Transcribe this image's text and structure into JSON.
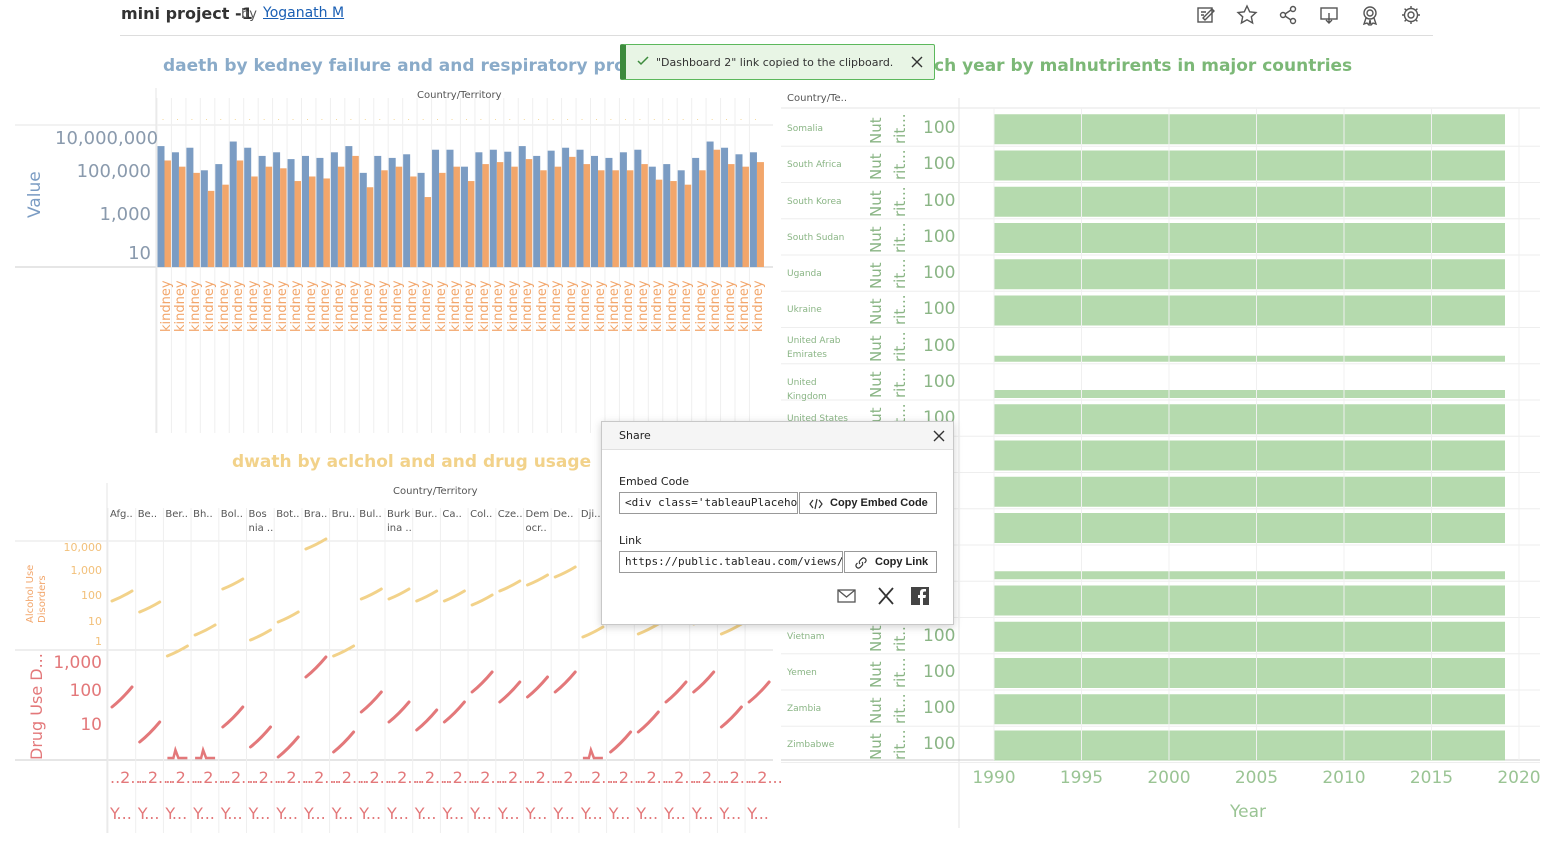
{
  "header": {
    "title": "mini project -1",
    "by": "by",
    "author": "Yoganath M",
    "tools": [
      "edit-icon",
      "star-icon",
      "share-icon",
      "download-icon",
      "metrics-icon",
      "settings-icon"
    ]
  },
  "toast": {
    "message": "\"Dashboard 2\" link copied to the clipboard."
  },
  "share": {
    "title": "Share",
    "embed_label": "Embed Code",
    "embed_value": "<div class='tableauPlaceholder",
    "embed_button": "Copy Embed Code",
    "link_label": "Link",
    "link_value": "https://public.tableau.com/views/minip",
    "link_button": "Copy Link"
  },
  "colors": {
    "blue": "#7b9cc3",
    "orange": "#f2a66b",
    "yellow": "#f2d28a",
    "red": "#e3787a",
    "green": "#a8d4a0",
    "green_text": "#7cb877",
    "blue_text": "#8aabc9"
  },
  "kidney": {
    "title": "daeth by kedney failure and and respiratory problem",
    "column_header": "Country/Territory",
    "ylabel": "Value",
    "yticks": [
      "10,000,000",
      "100,000",
      "1,000",
      "10"
    ],
    "xlabel_repeat": "kindney"
  },
  "alcohol": {
    "title": "dwath by aclchol and and drug usage",
    "column_header": "Country/Territory",
    "countries": [
      "Afg..",
      "Be..",
      "Ber..",
      "Bh..",
      "Bol..",
      "Bos nia ..",
      "Bot..",
      "Bra..",
      "Bru..",
      "Bul..",
      "Burk ina ..",
      "Bur..",
      "Ca..",
      "Col..",
      "Cze..",
      "Dem ocr..",
      "De..",
      "Dji.."
    ],
    "alcohol_label": "Alcohol Use Disorders",
    "alcohol_ticks": [
      "10,000",
      "1,000",
      "100",
      "10",
      "1"
    ],
    "drug_label": "Drug Use D...",
    "drug_ticks": [
      "1,000",
      "100",
      "10"
    ],
    "year_top": "..2...",
    "year_bottom": "Y..."
  },
  "malnutrition": {
    "title": "ch year by malnutrirents in major countries",
    "column_header": "Country/Te..",
    "row_value": "100",
    "col1": "Nut",
    "col2": "rit...",
    "countries": [
      "Somalia",
      "South Africa",
      "South Korea",
      "South Sudan",
      "Uganda",
      "Ukraine",
      "United Arab Emirates",
      "United Kingdom",
      "United States",
      "",
      "",
      "",
      "",
      "",
      "Vietnam",
      "Yemen",
      "Zambia",
      "Zimbabwe"
    ],
    "xticks": [
      "1990",
      "1995",
      "2000",
      "2005",
      "2010",
      "2015",
      "2020"
    ],
    "xlabel": "Year"
  },
  "chart_data": [
    {
      "type": "bar",
      "title": "daeth by kedney failure and and respiratory problem",
      "ylabel": "Value",
      "yscale": "log",
      "series": [
        {
          "values": [
            3000000,
            1500000,
            2500000,
            200000,
            400000,
            5000000,
            2500000,
            1000000,
            1500000,
            700000,
            1000000,
            800000,
            1500000,
            3000000,
            150000,
            1000000,
            800000,
            1200000,
            150000,
            2000000,
            2000000,
            300000,
            1500000,
            2000000,
            1600000,
            3000000,
            1000000,
            1800000,
            2500000,
            2000000,
            1000000,
            800000,
            1500000,
            2000000,
            300000,
            400000,
            200000,
            800000,
            5000000,
            2500000,
            1200000,
            1500000
          ]
        },
        {
          "values": [
            600000,
            300000,
            150000,
            20000,
            40000,
            600000,
            100000,
            300000,
            250000,
            60000,
            100000,
            80000,
            300000,
            1000000,
            30000,
            200000,
            300000,
            100000,
            10000,
            150000,
            300000,
            60000,
            400000,
            500000,
            300000,
            700000,
            200000,
            300000,
            900000,
            400000,
            200000,
            200000,
            200000,
            400000,
            70000,
            60000,
            40000,
            200000,
            2000000,
            400000,
            300000,
            500000
          ]
        }
      ]
    },
    {
      "type": "line",
      "title": "dwath by aclchol and and drug usage",
      "series": [
        {
          "name": "Alcohol Use Disorders",
          "yscale": "log"
        },
        {
          "name": "Drug Use D...",
          "yscale": "log"
        }
      ]
    },
    {
      "type": "area",
      "title": "ch year by malnutrirents in major countries",
      "xlabel": "Year",
      "xlim": [
        1990,
        2020
      ],
      "x": [
        1990,
        1995,
        2000,
        2005,
        2010,
        2015,
        2019
      ]
    }
  ]
}
